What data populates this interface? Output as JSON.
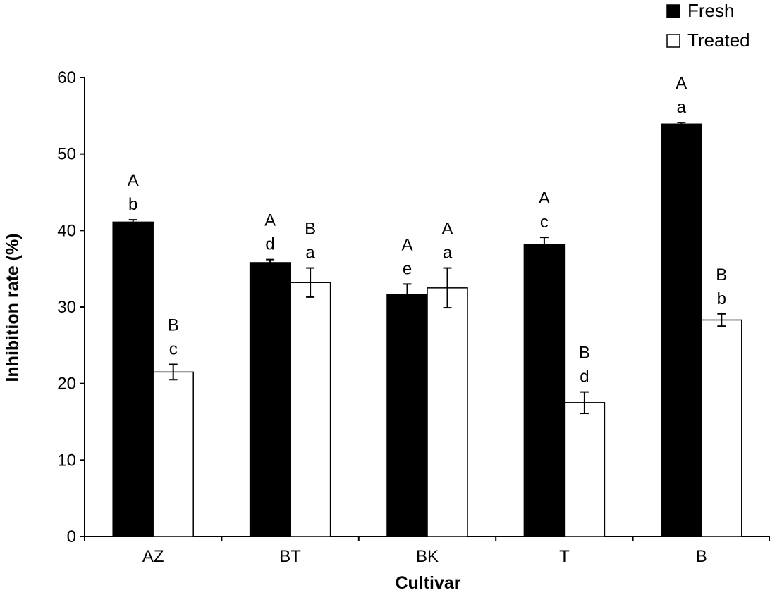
{
  "chart_data": {
    "type": "bar",
    "xlabel": "Cultivar",
    "ylabel": "Inhibition rate (%)",
    "ylim": [
      0,
      60
    ],
    "yticks": [
      0,
      10,
      20,
      30,
      40,
      50,
      60
    ],
    "grid": false,
    "legend_position": "top-right",
    "categories": [
      "AZ",
      "BT",
      "BK",
      "T",
      "B"
    ],
    "series": [
      {
        "name": "Fresh",
        "color": "#000000",
        "values": [
          41.1,
          35.8,
          31.6,
          38.2,
          53.9
        ],
        "errors": [
          0.3,
          0.4,
          1.4,
          0.9,
          0.2
        ],
        "labels_upper": [
          "A",
          "A",
          "A",
          "A",
          "A"
        ],
        "labels_lower": [
          "b",
          "d",
          "e",
          "c",
          "a"
        ]
      },
      {
        "name": "Treated",
        "color": "#ffffff",
        "values": [
          21.5,
          33.2,
          32.5,
          17.5,
          28.3
        ],
        "errors": [
          1.0,
          1.9,
          2.6,
          1.4,
          0.8
        ],
        "labels_upper": [
          "B",
          "B",
          "A",
          "B",
          "B"
        ],
        "labels_lower": [
          "c",
          "a",
          "a",
          "d",
          "b"
        ]
      }
    ]
  }
}
